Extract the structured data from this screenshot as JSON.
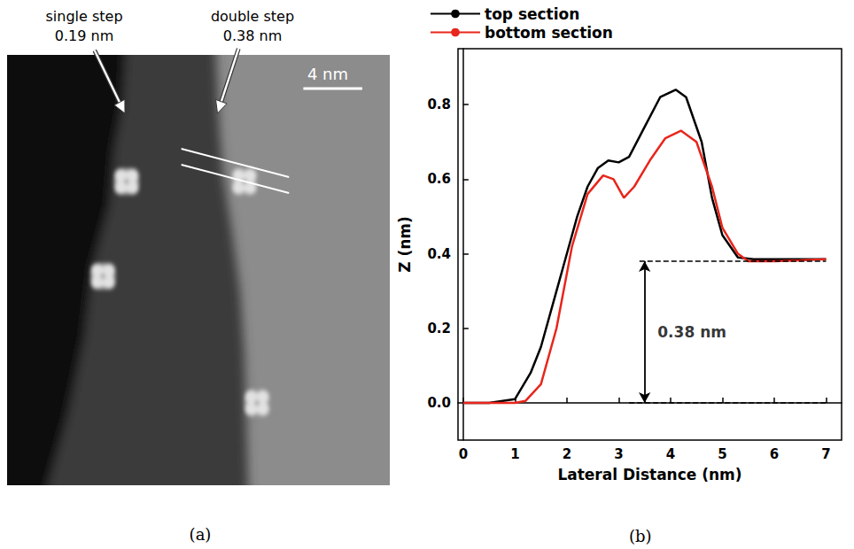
{
  "image": {
    "label": "(a)",
    "annotations": [
      {
        "text": "single step",
        "height": "0.19 nm"
      },
      {
        "text": "double step",
        "height": "0.38 nm"
      }
    ],
    "scale_bar": "4 nm"
  },
  "chart_data": {
    "label": "(b)",
    "type": "line",
    "xlabel": "Lateral Distance (nm)",
    "ylabel": "Z (nm)",
    "xlim": [
      -0.1,
      7.3
    ],
    "ylim": [
      -0.1,
      0.95
    ],
    "xticks": [
      0,
      1,
      2,
      3,
      4,
      5,
      6,
      7
    ],
    "yticks": [
      {
        "value": 0,
        "label": "0.0"
      },
      {
        "value": 0.2,
        "label": "0.2"
      },
      {
        "value": 0.4,
        "label": "0.4"
      },
      {
        "value": 0.6,
        "label": "0.6"
      },
      {
        "value": 0.8,
        "label": "0.8"
      }
    ],
    "grid": false,
    "legend": "top",
    "series": [
      {
        "name": "top section",
        "color": "#000000",
        "x": [
          0,
          0.5,
          1.0,
          1.3,
          1.5,
          1.8,
          2.0,
          2.2,
          2.4,
          2.6,
          2.8,
          3.0,
          3.2,
          3.5,
          3.8,
          4.1,
          4.3,
          4.6,
          4.8,
          5.0,
          5.3,
          5.6,
          6.0,
          6.5,
          7.0
        ],
        "values": [
          0,
          0,
          0.01,
          0.08,
          0.15,
          0.3,
          0.4,
          0.5,
          0.58,
          0.63,
          0.65,
          0.645,
          0.66,
          0.74,
          0.82,
          0.84,
          0.82,
          0.7,
          0.55,
          0.45,
          0.39,
          0.385,
          0.385,
          0.385,
          0.385
        ]
      },
      {
        "name": "bottom section",
        "color": "#e8261c",
        "x": [
          0,
          0.5,
          1.0,
          1.2,
          1.5,
          1.8,
          2.1,
          2.4,
          2.7,
          2.9,
          3.1,
          3.3,
          3.6,
          3.9,
          4.2,
          4.5,
          4.8,
          5.0,
          5.3,
          5.5,
          6.0,
          6.5,
          7.0
        ],
        "values": [
          0,
          0,
          0,
          0.005,
          0.05,
          0.2,
          0.42,
          0.56,
          0.61,
          0.6,
          0.55,
          0.58,
          0.65,
          0.71,
          0.73,
          0.7,
          0.58,
          0.47,
          0.4,
          0.38,
          0.38,
          0.382,
          0.385
        ]
      }
    ],
    "annotations": [
      {
        "text": "0.38 nm",
        "x": 3.5,
        "from": 0,
        "to": 0.38
      }
    ]
  }
}
